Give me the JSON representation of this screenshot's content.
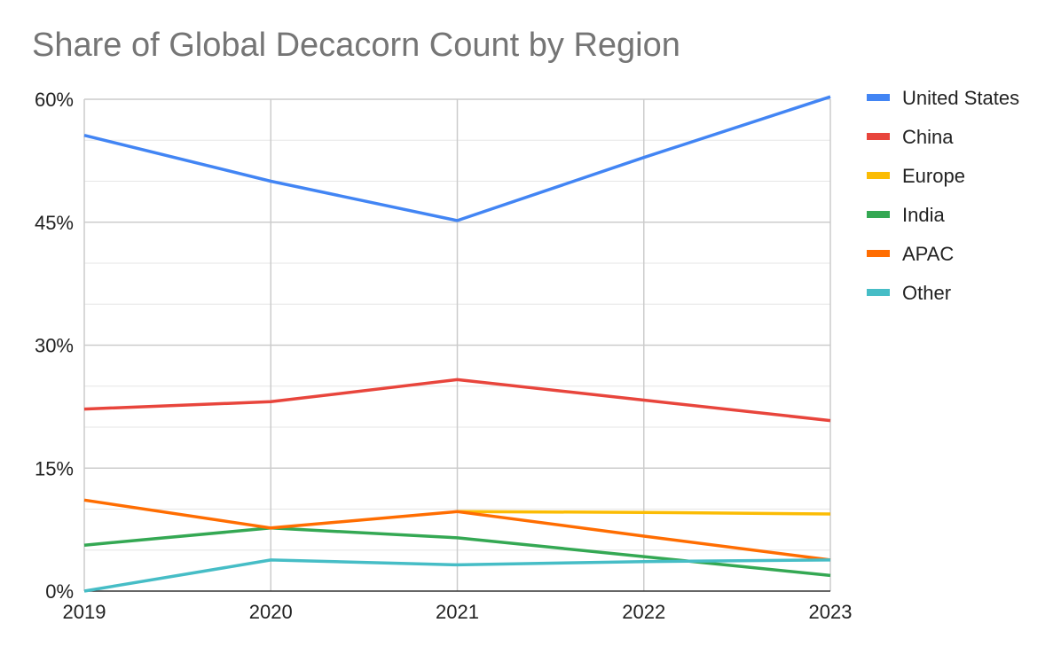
{
  "chart_data": {
    "type": "line",
    "title": "Share of Global Decacorn Count by Region",
    "xlabel": "",
    "ylabel": "",
    "x": [
      "2019",
      "2020",
      "2021",
      "2022",
      "2023"
    ],
    "ylim": [
      0,
      60
    ],
    "yticks": [
      0,
      15,
      30,
      45,
      60
    ],
    "ytick_labels": [
      "0%",
      "15%",
      "30%",
      "45%",
      "60%"
    ],
    "grid": true,
    "legend_position": "right",
    "series": [
      {
        "name": "United States",
        "color": "#4285f4",
        "values": [
          55.6,
          50.0,
          45.2,
          52.9,
          60.3
        ]
      },
      {
        "name": "China",
        "color": "#e8453c",
        "values": [
          22.2,
          23.1,
          25.8,
          23.3,
          20.8
        ]
      },
      {
        "name": "Europe",
        "color": "#fbbc04",
        "values": [
          null,
          null,
          9.7,
          9.6,
          9.4
        ]
      },
      {
        "name": "India",
        "color": "#34a853",
        "values": [
          5.6,
          7.7,
          6.5,
          4.2,
          1.9
        ]
      },
      {
        "name": "APAC",
        "color": "#ff6d01",
        "values": [
          11.1,
          7.7,
          9.7,
          6.7,
          3.8
        ]
      },
      {
        "name": "Other",
        "color": "#46bdc6",
        "values": [
          0.0,
          3.8,
          3.2,
          3.6,
          3.8
        ]
      }
    ]
  }
}
